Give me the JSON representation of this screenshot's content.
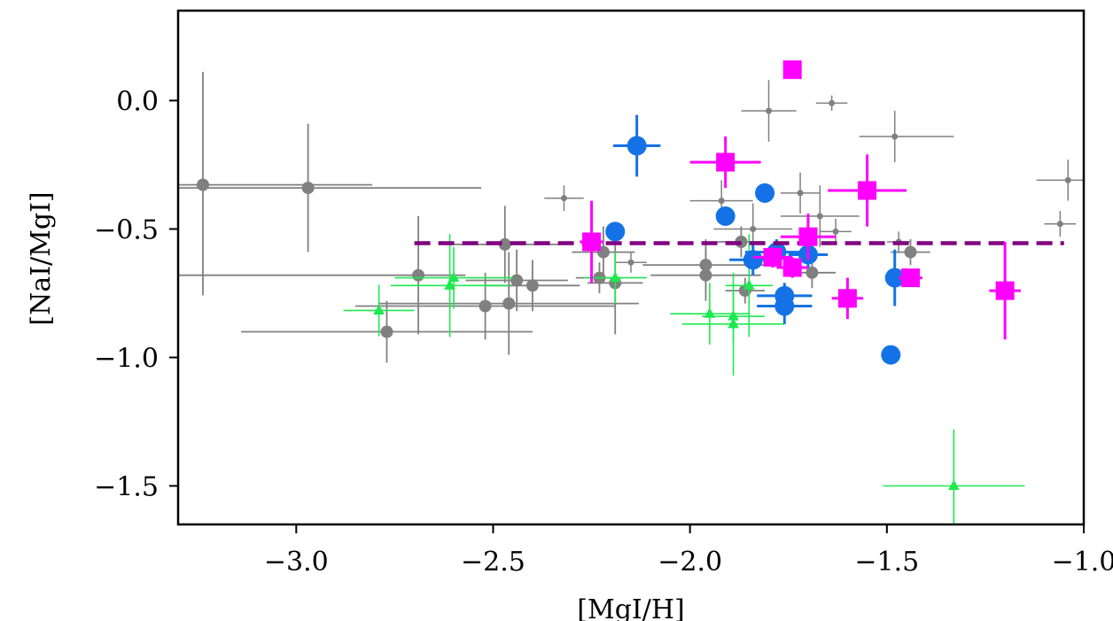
{
  "chart_data": {
    "type": "scatter",
    "title": "",
    "xlabel": "[MgI/H]",
    "ylabel": "[NaI/MgI]",
    "xlim": [
      -3.3,
      -1.0
    ],
    "ylim": [
      -1.65,
      0.35
    ],
    "xticks": [
      -3.0,
      -2.5,
      -2.0,
      -1.5,
      -1.0
    ],
    "xtick_labels": [
      "−3.0",
      "−2.5",
      "−2.0",
      "−1.5",
      "−1.0"
    ],
    "yticks": [
      0.0,
      -0.5,
      -1.0,
      -1.5
    ],
    "ytick_labels": [
      "0.0",
      "−0.5",
      "−1.0",
      "−1.5"
    ],
    "grid": false,
    "legend": "none",
    "reference_line": {
      "style": "dashed",
      "color": "#800080",
      "y": -0.555,
      "x_start": -2.7,
      "x_end": -1.05
    },
    "series": [
      {
        "name": "gray-large",
        "marker": "circle",
        "color": "#808080",
        "points": [
          {
            "x": -3.237,
            "y": -0.328,
            "xerr": [
              0.07,
              0.43
            ],
            "yerr": [
              0.43,
              0.44
            ]
          },
          {
            "x": -2.97,
            "y": -0.34,
            "xerr": [
              0.44,
              0.44
            ],
            "yerr": [
              0.25,
              0.25
            ]
          },
          {
            "x": -2.77,
            "y": -0.9,
            "xerr": [
              0.37,
              0.37
            ],
            "yerr": [
              0.12,
              0.12
            ]
          },
          {
            "x": -2.69,
            "y": -0.68,
            "xerr": [
              0.67,
              0.12
            ],
            "yerr": [
              0.23,
              0.23
            ]
          },
          {
            "x": -2.47,
            "y": -0.56,
            "xerr": [
              0.15,
              0.15
            ],
            "yerr": [
              0.15,
              0.15
            ]
          },
          {
            "x": -2.52,
            "y": -0.8,
            "xerr": [
              0.33,
              0.33
            ],
            "yerr": [
              0.13,
              0.13
            ]
          },
          {
            "x": -2.46,
            "y": -0.79,
            "xerr": [
              0.33,
              0.33
            ],
            "yerr": [
              0.2,
              0.2
            ]
          },
          {
            "x": -2.44,
            "y": -0.7,
            "xerr": [
              0.13,
              0.13
            ],
            "yerr": [
              0.12,
              0.12
            ]
          },
          {
            "x": -2.4,
            "y": -0.72,
            "xerr": [
              0.12,
              0.12
            ],
            "yerr": [
              0.1,
              0.1
            ]
          },
          {
            "x": -2.22,
            "y": -0.59,
            "xerr": [
              0.08,
              0.08
            ],
            "yerr": [
              0.1,
              0.1
            ]
          },
          {
            "x": -2.23,
            "y": -0.69,
            "xerr": [
              0.06,
              0.06
            ],
            "yerr": [
              0.06,
              0.06
            ]
          },
          {
            "x": -2.19,
            "y": -0.71,
            "xerr": [
              0.07,
              0.07
            ],
            "yerr": [
              0.2,
              0.2
            ]
          },
          {
            "x": -1.96,
            "y": -0.64,
            "xerr": [
              0.16,
              0.16
            ],
            "yerr": [
              0.1,
              0.1
            ]
          },
          {
            "x": -1.96,
            "y": -0.68,
            "xerr": [
              0.14,
              0.14
            ],
            "yerr": [
              0.1,
              0.1
            ]
          },
          {
            "x": -1.87,
            "y": -0.55,
            "xerr": [
              0.06,
              0.06
            ],
            "yerr": [
              0.06,
              0.06
            ]
          },
          {
            "x": -1.86,
            "y": -0.74,
            "xerr": [
              0.05,
              0.05
            ],
            "yerr": [
              0.05,
              0.05
            ]
          },
          {
            "x": -1.69,
            "y": -0.67,
            "xerr": [
              0.06,
              0.06
            ],
            "yerr": [
              0.06,
              0.06
            ]
          },
          {
            "x": -1.44,
            "y": -0.59,
            "xerr": [
              0.05,
              0.05
            ],
            "yerr": [
              0.05,
              0.05
            ]
          }
        ]
      },
      {
        "name": "gray-small",
        "marker": "small-circle",
        "color": "#808080",
        "points": [
          {
            "x": -2.32,
            "y": -0.38,
            "xerr": [
              0.05,
              0.05
            ],
            "yerr": [
              0.05,
              0.05
            ]
          },
          {
            "x": -2.15,
            "y": -0.63,
            "xerr": [
              0.04,
              0.04
            ],
            "yerr": [
              0.04,
              0.04
            ]
          },
          {
            "x": -1.8,
            "y": -0.04,
            "xerr": [
              0.07,
              0.07
            ],
            "yerr": [
              0.12,
              0.12
            ]
          },
          {
            "x": -1.92,
            "y": -0.39,
            "xerr": [
              0.08,
              0.08
            ],
            "yerr": [
              0.08,
              0.08
            ]
          },
          {
            "x": -1.84,
            "y": -0.5,
            "xerr": [
              0.1,
              0.1
            ],
            "yerr": [
              0.1,
              0.1
            ]
          },
          {
            "x": -1.72,
            "y": -0.36,
            "xerr": [
              0.05,
              0.05
            ],
            "yerr": [
              0.08,
              0.08
            ]
          },
          {
            "x": -1.67,
            "y": -0.45,
            "xerr": [
              0.1,
              0.1
            ],
            "yerr": [
              0.12,
              0.12
            ]
          },
          {
            "x": -1.63,
            "y": -0.51,
            "xerr": [
              0.04,
              0.04
            ],
            "yerr": [
              0.05,
              0.05
            ]
          },
          {
            "x": -1.64,
            "y": -0.01,
            "xerr": [
              0.04,
              0.04
            ],
            "yerr": [
              0.03,
              0.03
            ]
          },
          {
            "x": -1.48,
            "y": -0.14,
            "xerr": [
              0.09,
              0.15
            ],
            "yerr": [
              0.1,
              0.1
            ]
          },
          {
            "x": -1.47,
            "y": -0.55,
            "xerr": [
              0.03,
              0.03
            ],
            "yerr": [
              0.04,
              0.04
            ]
          },
          {
            "x": -1.04,
            "y": -0.31,
            "xerr": [
              0.08,
              0.04
            ],
            "yerr": [
              0.08,
              0.08
            ]
          },
          {
            "x": -1.06,
            "y": -0.48,
            "xerr": [
              0.04,
              0.04
            ],
            "yerr": [
              0.05,
              0.05
            ]
          }
        ]
      },
      {
        "name": "green-triangles",
        "marker": "triangle",
        "color": "#1de94f",
        "points": [
          {
            "x": -2.79,
            "y": -0.817,
            "xerr": [
              0.09,
              0.09
            ],
            "yerr": [
              0.1,
              0.1
            ]
          },
          {
            "x": -2.6,
            "y": -0.69,
            "xerr": [
              0.15,
              0.15
            ],
            "yerr": [
              0.12,
              0.12
            ]
          },
          {
            "x": -2.61,
            "y": -0.72,
            "xerr": [
              0.15,
              0.15
            ],
            "yerr": [
              0.2,
              0.2
            ]
          },
          {
            "x": -2.19,
            "y": -0.69,
            "xerr": [
              0.08,
              0.08
            ],
            "yerr": [
              0.1,
              0.1
            ]
          },
          {
            "x": -1.95,
            "y": -0.83,
            "xerr": [
              0.1,
              0.1
            ],
            "yerr": [
              0.12,
              0.12
            ]
          },
          {
            "x": -1.89,
            "y": -0.84,
            "xerr": [
              0.08,
              0.08
            ],
            "yerr": [
              0.1,
              0.1
            ]
          },
          {
            "x": -1.89,
            "y": -0.87,
            "xerr": [
              0.13,
              0.13
            ],
            "yerr": [
              0.2,
              0.2
            ]
          },
          {
            "x": -1.85,
            "y": -0.72,
            "xerr": [
              0.06,
              0.06
            ],
            "yerr": [
              0.2,
              0.2
            ]
          },
          {
            "x": -1.33,
            "y": -1.5,
            "xerr": [
              0.18,
              0.18
            ],
            "yerr": [
              0.22,
              0.22
            ]
          }
        ]
      },
      {
        "name": "blue-circles",
        "marker": "circle-large",
        "color": "#1472e6",
        "points": [
          {
            "x": -2.135,
            "y": -0.176,
            "xerr": [
              0.06,
              0.06
            ],
            "yerr": [
              0.12,
              0.12
            ]
          },
          {
            "x": -2.19,
            "y": -0.51,
            "xerr": [
              0.0,
              0.0
            ],
            "yerr": [
              0.0,
              0.0
            ]
          },
          {
            "x": -1.91,
            "y": -0.45,
            "xerr": [
              0.0,
              0.0
            ],
            "yerr": [
              0.03,
              0.03
            ]
          },
          {
            "x": -1.81,
            "y": -0.36,
            "xerr": [
              0.02,
              0.02
            ],
            "yerr": [
              0.0,
              0.0
            ]
          },
          {
            "x": -1.84,
            "y": -0.62,
            "xerr": [
              0.06,
              0.06
            ],
            "yerr": [
              0.06,
              0.06
            ]
          },
          {
            "x": -1.78,
            "y": -0.59,
            "xerr": [
              0.08,
              0.08
            ],
            "yerr": [
              0.05,
              0.05
            ]
          },
          {
            "x": -1.76,
            "y": -0.76,
            "xerr": [
              0.07,
              0.07
            ],
            "yerr": [
              0.05,
              0.05
            ]
          },
          {
            "x": -1.76,
            "y": -0.8,
            "xerr": [
              0.07,
              0.07
            ],
            "yerr": [
              0.07,
              0.07
            ]
          },
          {
            "x": -1.7,
            "y": -0.6,
            "xerr": [
              0.05,
              0.05
            ],
            "yerr": [
              0.05,
              0.05
            ]
          },
          {
            "x": -1.48,
            "y": -0.69,
            "xerr": [
              0.0,
              0.0
            ],
            "yerr": [
              0.11,
              0.11
            ]
          },
          {
            "x": -1.49,
            "y": -0.99,
            "xerr": [
              0.0,
              0.0
            ],
            "yerr": [
              0.0,
              0.0
            ]
          }
        ]
      },
      {
        "name": "magenta-squares",
        "marker": "square",
        "color": "#ff00ff",
        "points": [
          {
            "x": -1.74,
            "y": 0.12,
            "xerr": [
              0.02,
              0.02
            ],
            "yerr": [
              0.01,
              0.01
            ]
          },
          {
            "x": -1.91,
            "y": -0.24,
            "xerr": [
              0.09,
              0.09
            ],
            "yerr": [
              0.1,
              0.1
            ]
          },
          {
            "x": -1.55,
            "y": -0.35,
            "xerr": [
              0.1,
              0.1
            ],
            "yerr": [
              0.14,
              0.14
            ]
          },
          {
            "x": -2.25,
            "y": -0.55,
            "xerr": [
              0.03,
              0.03
            ],
            "yerr": [
              0.16,
              0.16
            ]
          },
          {
            "x": -1.79,
            "y": -0.61,
            "xerr": [
              0.05,
              0.05
            ],
            "yerr": [
              0.04,
              0.04
            ]
          },
          {
            "x": -1.74,
            "y": -0.65,
            "xerr": [
              0.04,
              0.04
            ],
            "yerr": [
              0.04,
              0.04
            ]
          },
          {
            "x": -1.7,
            "y": -0.53,
            "xerr": [
              0.07,
              0.07
            ],
            "yerr": [
              0.09,
              0.09
            ]
          },
          {
            "x": -1.6,
            "y": -0.77,
            "xerr": [
              0.04,
              0.04
            ],
            "yerr": [
              0.08,
              0.08
            ]
          },
          {
            "x": -1.44,
            "y": -0.69,
            "xerr": [
              0.03,
              0.03
            ],
            "yerr": [
              0.03,
              0.03
            ]
          },
          {
            "x": -1.2,
            "y": -0.74,
            "xerr": [
              0.04,
              0.04
            ],
            "yerr": [
              0.19,
              0.19
            ]
          }
        ]
      }
    ]
  }
}
